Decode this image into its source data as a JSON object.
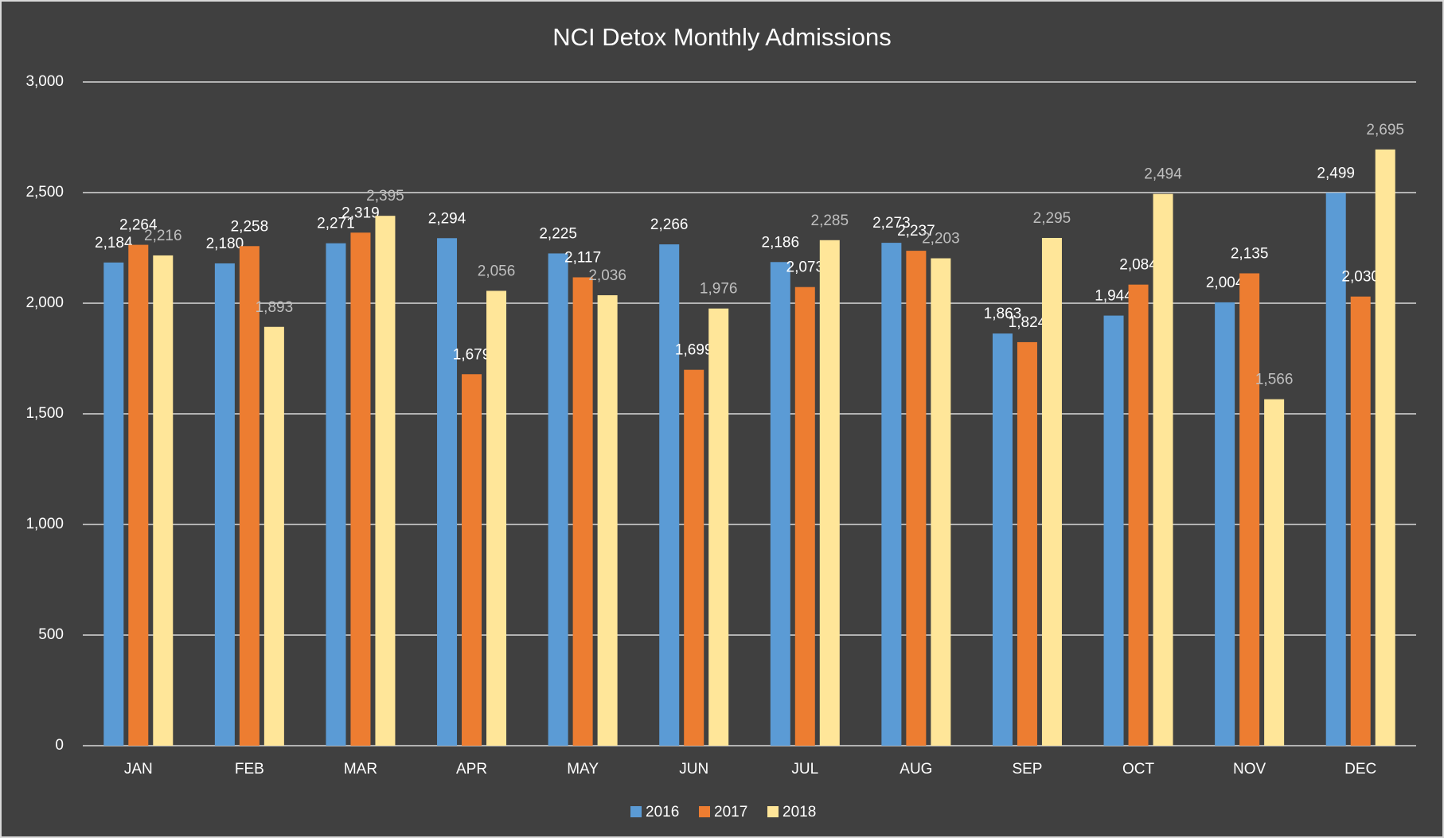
{
  "chart_data": {
    "type": "bar",
    "title": "NCI Detox  Monthly Admissions",
    "categories": [
      "JAN",
      "FEB",
      "MAR",
      "APR",
      "MAY",
      "JUN",
      "JUL",
      "AUG",
      "SEP",
      "OCT",
      "NOV",
      "DEC"
    ],
    "series": [
      {
        "name": "2016",
        "color": "#5b9bd5",
        "values": [
          2184,
          2180,
          2271,
          2294,
          2225,
          2266,
          2186,
          2273,
          1863,
          1944,
          2004,
          2499
        ],
        "value_labels": [
          "2,184",
          "2,180",
          "2,271",
          "2,294",
          "2,225",
          "2,266",
          "2,186",
          "2,273",
          "1,863",
          "1,944",
          "2,004",
          "2,499"
        ]
      },
      {
        "name": "2017",
        "color": "#ed7d31",
        "values": [
          2264,
          2258,
          2319,
          1679,
          2117,
          1699,
          2073,
          2237,
          1824,
          2084,
          2135,
          2030
        ],
        "value_labels": [
          "2,264",
          "2,258",
          "2,319",
          "1,679",
          "2,117",
          "1,699",
          "2,073",
          "2,237",
          "1,824",
          "2,084",
          "2,135",
          "2,030"
        ]
      },
      {
        "name": "2018",
        "color": "#ffe699",
        "values": [
          2216,
          1893,
          2395,
          2056,
          2036,
          1976,
          2285,
          2203,
          2295,
          2494,
          1566,
          2695
        ],
        "value_labels": [
          "2,216",
          "1,893",
          "2,395",
          "2,056",
          "2,036",
          "1,976",
          "2,285",
          "2,203",
          "2,295",
          "2,494",
          "1,566",
          "2,695"
        ]
      }
    ],
    "ylim": [
      0,
      3000
    ],
    "yticks": [
      0,
      500,
      {
        "value": 1000,
        "label": "1,000"
      },
      {
        "value": 1500,
        "label": "1,500"
      },
      {
        "value": 2000,
        "label": "2,000"
      },
      {
        "value": 2500,
        "label": "2,500"
      },
      {
        "value": 3000,
        "label": "3,000"
      }
    ],
    "grid": true,
    "legend": "bottom"
  }
}
